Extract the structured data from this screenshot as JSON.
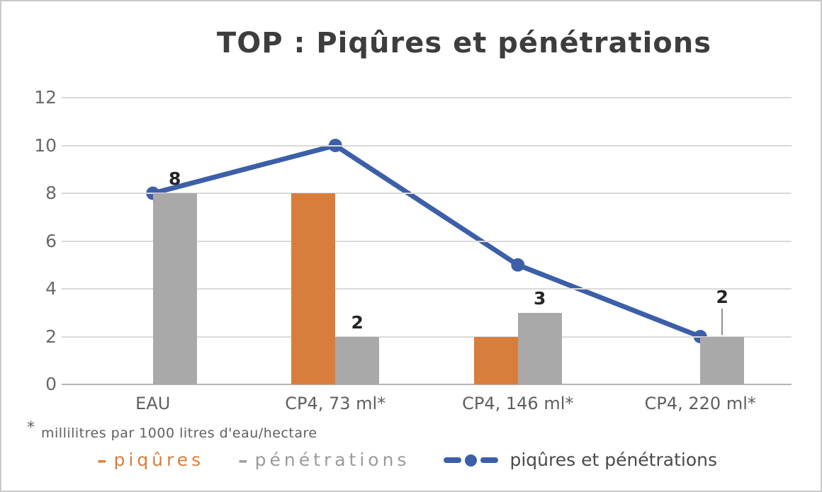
{
  "page": {
    "background": "#ffffff",
    "border_color": "#c9c9c9"
  },
  "chart_data": {
    "type": "combo-bar-line",
    "title": "TOP : Piqûres et pénétrations",
    "categories": [
      "EAU",
      "CP4,  73 ml*",
      "CP4,  146 ml*",
      "CP4, 220 ml*"
    ],
    "series": [
      {
        "name": "piqûres",
        "chart_type": "bar",
        "color": "#d87e3c",
        "values": [
          0,
          8,
          2,
          0
        ]
      },
      {
        "name": "pénétrations",
        "chart_type": "bar",
        "color": "#a9a9a9",
        "values": [
          8,
          2,
          3,
          2
        ],
        "data_labels": [
          "8",
          "2",
          "3",
          "2"
        ],
        "label_leader": [
          false,
          false,
          false,
          true
        ]
      },
      {
        "name": "piqûres et pénétrations",
        "chart_type": "line",
        "color": "#3c5fa8",
        "values": [
          8,
          10,
          5,
          2
        ]
      }
    ],
    "ylim": [
      0,
      12
    ],
    "yticks": [
      0,
      2,
      4,
      6,
      8,
      10,
      12
    ],
    "grid": true,
    "legend_position": "bottom",
    "xlabel": "",
    "ylabel": "",
    "footnote_mark": "*",
    "footnote": "millilitres par 1000 litres d'eau/hectare",
    "legend": {
      "dash": "–",
      "items": [
        {
          "label": "piqûres",
          "color": "#d87e3c"
        },
        {
          "label": "pénétrations",
          "color": "#9a9a9a"
        },
        {
          "label": "piqûres et pénétrations",
          "color": "#4a4a4a"
        }
      ]
    }
  }
}
